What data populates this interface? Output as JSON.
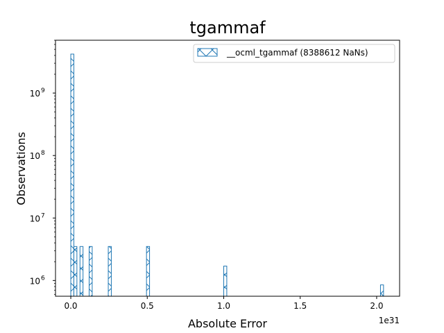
{
  "chart_data": {
    "type": "bar",
    "title": "tgammaf",
    "xlabel": "Absolute Error",
    "ylabel": "Observations",
    "x_offset_label": "1e31",
    "x_scale_factor": 1e+31,
    "xlim": [
      -0.1,
      2.15
    ],
    "ylim": [
      560000,
      7000000000
    ],
    "y_scale": "log",
    "x_ticks": [
      {
        "value": 0.0,
        "label": "0.0"
      },
      {
        "value": 0.5,
        "label": "0.5"
      },
      {
        "value": 1.0,
        "label": "1.0"
      },
      {
        "value": 1.5,
        "label": "1.5"
      },
      {
        "value": 2.0,
        "label": "2.0"
      }
    ],
    "y_ticks": [
      {
        "value": 1000000,
        "base": "10",
        "exp": "6"
      },
      {
        "value": 10000000,
        "base": "10",
        "exp": "7"
      },
      {
        "value": 100000000,
        "base": "10",
        "exp": "8"
      },
      {
        "value": 1000000000,
        "base": "10",
        "exp": "9"
      }
    ],
    "bin_width": 0.02,
    "series": [
      {
        "name": "__ocml_tgammaf (8388612 NaNs)",
        "color": "#1f77b4",
        "hatch": "/\\",
        "bins": [
          {
            "x": 0.0,
            "count": 4200000000
          },
          {
            "x": 0.02,
            "count": 3500000
          },
          {
            "x": 0.06,
            "count": 3500000
          },
          {
            "x": 0.12,
            "count": 3500000
          },
          {
            "x": 0.245,
            "count": 3500000
          },
          {
            "x": 0.495,
            "count": 3500000
          },
          {
            "x": 1.0,
            "count": 1700000
          },
          {
            "x": 2.025,
            "count": 850000
          }
        ]
      }
    ],
    "legend": {
      "position": "top-right"
    }
  }
}
